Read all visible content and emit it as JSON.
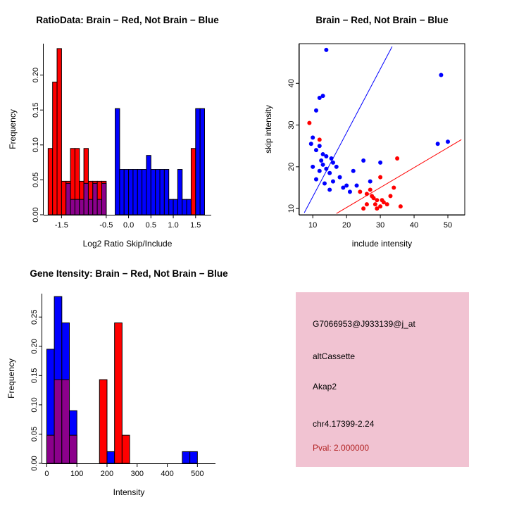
{
  "figure": {
    "background": "#FFFFFF"
  },
  "info_box": {
    "bg_color": "#F1C3D2",
    "pval_color": "#B22222",
    "lines": [
      "G7066953@J933139@j_at",
      "altCassette",
      "Akap2",
      "chr4.17399-2.24",
      "Pval: 2.000000"
    ]
  },
  "chart_data": [
    {
      "id": "ratio_histogram",
      "type": "bar",
      "title": "RatioData: Brain − Red, Not Brain − Blue",
      "xlabel": "Log2 Ratio Skip/Include",
      "ylabel": "Frequency",
      "xlim": [
        -1.9,
        1.85
      ],
      "ylim": [
        0,
        0.245
      ],
      "xticks": [
        -1.5,
        -0.5,
        0.0,
        0.5,
        1.0,
        1.5
      ],
      "xtick_labels": [
        "-1.5",
        "-0.5",
        "0.0",
        "0.5",
        "1.0",
        "1.5"
      ],
      "yticks": [
        0.0,
        0.05,
        0.1,
        0.15,
        0.2
      ],
      "ytick_labels": [
        "0.00",
        "0.05",
        "0.10",
        "0.15",
        "0.20"
      ],
      "bin_start": -1.8,
      "bin_width": 0.1,
      "grid": false,
      "legend": "none",
      "overlap_color": "#8B008B",
      "series": [
        {
          "name": "Brain",
          "color": "#FF0000",
          "values": [
            0.095,
            0.19,
            0.238,
            0.048,
            0.048,
            0.095,
            0.095,
            0.048,
            0.095,
            0.048,
            0.048,
            0.048,
            0.048,
            0,
            0,
            0,
            0,
            0,
            0,
            0,
            0,
            0,
            0,
            0,
            0,
            0,
            0,
            0,
            0,
            0,
            0,
            0,
            0.095,
            0,
            0
          ]
        },
        {
          "name": "Not Brain",
          "color": "#0000FF",
          "values": [
            0,
            0,
            0,
            0,
            0.045,
            0.022,
            0.022,
            0.022,
            0.045,
            0.022,
            0.045,
            0.022,
            0.045,
            0,
            0,
            0.152,
            0.065,
            0.065,
            0.065,
            0.065,
            0.065,
            0.065,
            0.085,
            0.065,
            0.065,
            0.065,
            0.065,
            0.022,
            0.022,
            0.065,
            0.022,
            0.022,
            0,
            0.152,
            0.152
          ]
        }
      ]
    },
    {
      "id": "intensity_scatter",
      "type": "scatter",
      "title": "Brain − Red, Not Brain − Blue",
      "xlabel": "include intensity",
      "ylabel": "skip intensity",
      "xlim": [
        6,
        55
      ],
      "ylim": [
        8.5,
        49.5
      ],
      "xticks": [
        10,
        20,
        30,
        40,
        50
      ],
      "xtick_labels": [
        "10",
        "20",
        "30",
        "40",
        "50"
      ],
      "yticks": [
        10,
        20,
        30,
        40
      ],
      "ytick_labels": [
        "10",
        "20",
        "30",
        "40"
      ],
      "grid": false,
      "legend": "none",
      "series": [
        {
          "name": "Not Brain",
          "color": "#0000FF",
          "points": [
            [
              14,
              48
            ],
            [
              13,
              37
            ],
            [
              12,
              36.5
            ],
            [
              11,
              33.5
            ],
            [
              48,
              42
            ],
            [
              10,
              27
            ],
            [
              9.5,
              25.5
            ],
            [
              12,
              25
            ],
            [
              11,
              24
            ],
            [
              13,
              23
            ],
            [
              14,
              22.5
            ],
            [
              15.5,
              22
            ],
            [
              12.5,
              21.5
            ],
            [
              16,
              21
            ],
            [
              13,
              20.5
            ],
            [
              10,
              20
            ],
            [
              17,
              20
            ],
            [
              14,
              19.5
            ],
            [
              12,
              19
            ],
            [
              15,
              18.5
            ],
            [
              18,
              17.5
            ],
            [
              11,
              17
            ],
            [
              16,
              16.5
            ],
            [
              13.5,
              16
            ],
            [
              20,
              15.5
            ],
            [
              19,
              15
            ],
            [
              15,
              14.5
            ],
            [
              22,
              19
            ],
            [
              25,
              21.5
            ],
            [
              30,
              21
            ],
            [
              27,
              16.5
            ],
            [
              21,
              14
            ],
            [
              50,
              26
            ],
            [
              47,
              25.5
            ],
            [
              23,
              15.5
            ]
          ]
        },
        {
          "name": "Brain",
          "color": "#FF0000",
          "points": [
            [
              9,
              30.5
            ],
            [
              12,
              26.5
            ],
            [
              35,
              22
            ],
            [
              30,
              17.5
            ],
            [
              24,
              14
            ],
            [
              26,
              13.5
            ],
            [
              27.5,
              13
            ],
            [
              28,
              12.5
            ],
            [
              29,
              12
            ],
            [
              30.5,
              12
            ],
            [
              31,
              11.5
            ],
            [
              26,
              11
            ],
            [
              28.5,
              11
            ],
            [
              32,
              11
            ],
            [
              30,
              10.5
            ],
            [
              25,
              10
            ],
            [
              29,
              10
            ],
            [
              33,
              13
            ],
            [
              34,
              15
            ],
            [
              27,
              14.5
            ],
            [
              36,
              10.5
            ]
          ]
        }
      ],
      "lines": [
        {
          "name": "not-brain-fit",
          "color": "#0000FF",
          "x1": 7.5,
          "y1": 9,
          "x2": 33.5,
          "y2": 48.8
        },
        {
          "name": "brain-fit",
          "color": "#FF0000",
          "x1": 17,
          "y1": 8.8,
          "x2": 54,
          "y2": 26.5
        }
      ]
    },
    {
      "id": "gene_intensity_histogram",
      "type": "bar",
      "title": "Gene Itensity: Brain − Red, Not Brain − Blue",
      "xlabel": "Intensity",
      "ylabel": "Frequency",
      "xlim": [
        -15,
        560
      ],
      "ylim": [
        0,
        0.29
      ],
      "xticks": [
        0,
        100,
        200,
        300,
        400,
        500
      ],
      "xtick_labels": [
        "0",
        "100",
        "200",
        "300",
        "400",
        "500"
      ],
      "yticks": [
        0.0,
        0.05,
        0.1,
        0.15,
        0.2,
        0.25
      ],
      "ytick_labels": [
        "0.00",
        "0.05",
        "0.10",
        "0.15",
        "0.20",
        "0.25"
      ],
      "bin_start": 0,
      "bin_width": 25,
      "grid": false,
      "legend": "none",
      "overlap_color": "#8B008B",
      "series": [
        {
          "name": "Brain",
          "color": "#FF0000",
          "values": [
            0.048,
            0.143,
            0.143,
            0.048,
            0,
            0,
            0,
            0.143,
            0,
            0.24,
            0.048,
            0,
            0,
            0,
            0,
            0,
            0,
            0,
            0,
            0,
            0
          ]
        },
        {
          "name": "Not Brain",
          "color": "#0000FF",
          "values": [
            0.195,
            0.285,
            0.24,
            0.09,
            0,
            0,
            0,
            0,
            0.02,
            0,
            0,
            0,
            0,
            0,
            0,
            0,
            0,
            0,
            0.02,
            0.02,
            0
          ]
        }
      ]
    }
  ]
}
